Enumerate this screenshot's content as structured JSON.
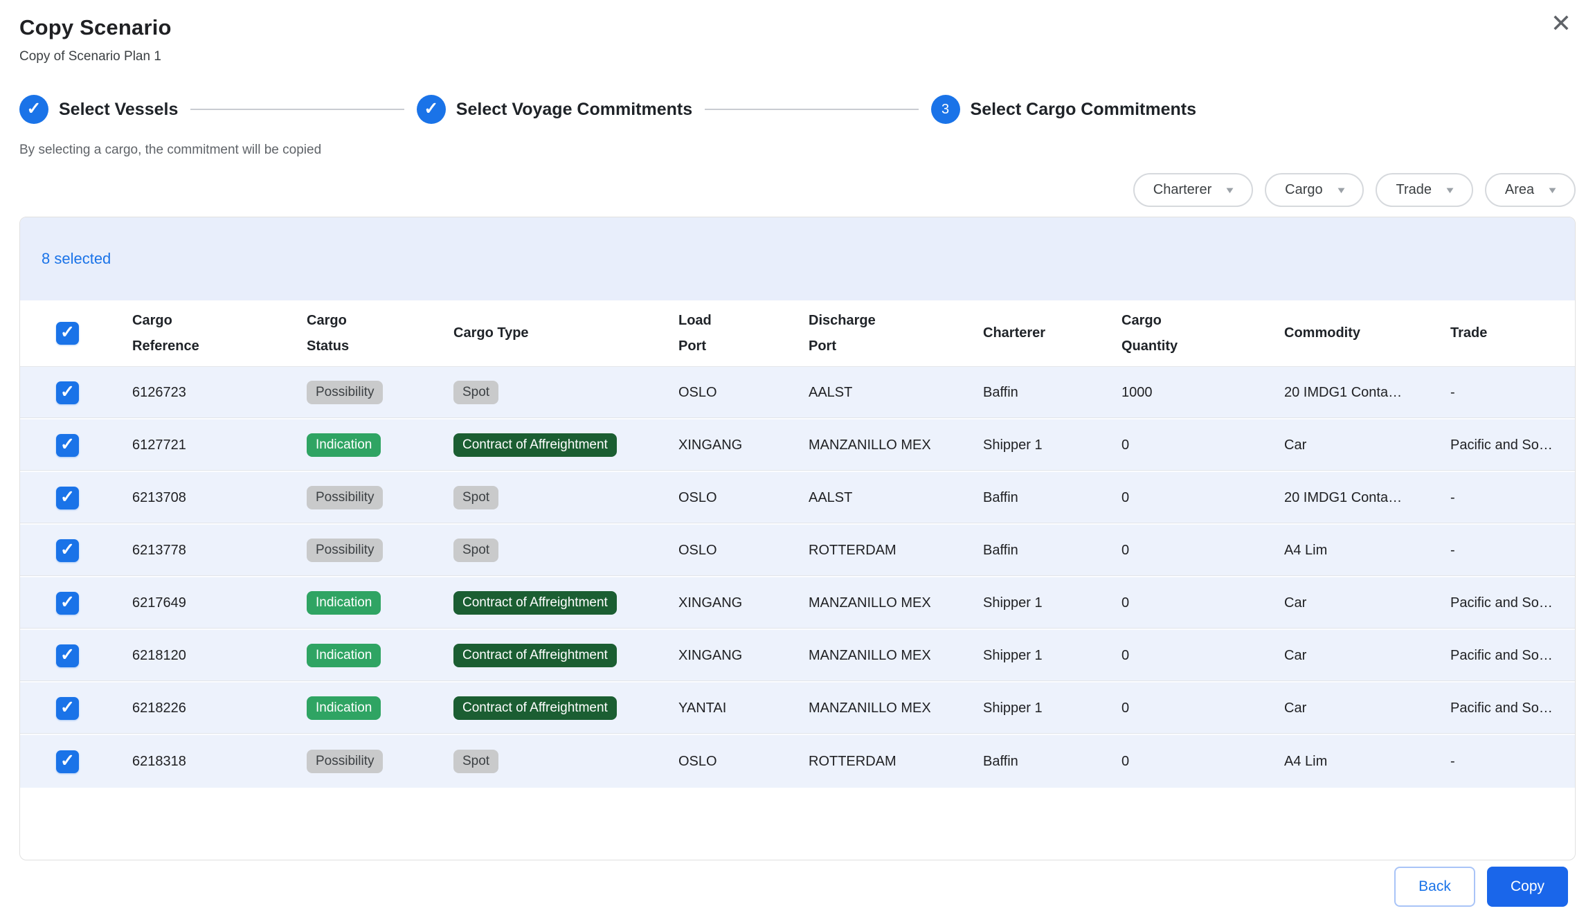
{
  "dialog": {
    "title": "Copy Scenario",
    "subtitle": "Copy of Scenario Plan 1",
    "close_icon": "✕"
  },
  "stepper": {
    "steps": [
      {
        "label": "Select Vessels",
        "state": "complete"
      },
      {
        "label": "Select Voyage Commitments",
        "state": "complete"
      },
      {
        "label": "Select Cargo Commitments",
        "state": "active",
        "number": "3"
      }
    ],
    "helper_text": "By selecting a cargo, the commitment will be copied"
  },
  "filters": [
    {
      "label": "Charterer"
    },
    {
      "label": "Cargo"
    },
    {
      "label": "Trade"
    },
    {
      "label": "Area"
    }
  ],
  "table": {
    "selected_text": "8 selected",
    "columns": [
      "Cargo\nReference",
      "Cargo\nStatus",
      "Cargo Type",
      "Load\nPort",
      "Discharge\nPort",
      "Charterer",
      "Cargo\nQuantity",
      "Commodity",
      "Trade"
    ],
    "rows": [
      {
        "selected": true,
        "reference": "6126723",
        "status": {
          "label": "Possibility",
          "variant": "gray"
        },
        "cargo_type": {
          "label": "Spot",
          "variant": "gray"
        },
        "load_port": "OSLO",
        "discharge_port": "AALST",
        "charterer": "Baffin",
        "cargo_quantity": "1000",
        "commodity": "20 IMDG1 Conta…",
        "trade": "-"
      },
      {
        "selected": true,
        "reference": "6127721",
        "status": {
          "label": "Indication",
          "variant": "green"
        },
        "cargo_type": {
          "label": "Contract of Affreightment",
          "variant": "darkgreen"
        },
        "load_port": "XINGANG",
        "discharge_port": "MANZANILLO MEX",
        "charterer": "Shipper 1",
        "cargo_quantity": "0",
        "commodity": "Car",
        "trade": "Pacific and So…"
      },
      {
        "selected": true,
        "reference": "6213708",
        "status": {
          "label": "Possibility",
          "variant": "gray"
        },
        "cargo_type": {
          "label": "Spot",
          "variant": "gray"
        },
        "load_port": "OSLO",
        "discharge_port": "AALST",
        "charterer": "Baffin",
        "cargo_quantity": "0",
        "commodity": "20 IMDG1 Conta…",
        "trade": "-"
      },
      {
        "selected": true,
        "reference": "6213778",
        "status": {
          "label": "Possibility",
          "variant": "gray"
        },
        "cargo_type": {
          "label": "Spot",
          "variant": "gray"
        },
        "load_port": "OSLO",
        "discharge_port": "ROTTERDAM",
        "charterer": "Baffin",
        "cargo_quantity": "0",
        "commodity": "A4 Lim",
        "trade": "-"
      },
      {
        "selected": true,
        "reference": "6217649",
        "status": {
          "label": "Indication",
          "variant": "green"
        },
        "cargo_type": {
          "label": "Contract of Affreightment",
          "variant": "darkgreen"
        },
        "load_port": "XINGANG",
        "discharge_port": "MANZANILLO MEX",
        "charterer": "Shipper 1",
        "cargo_quantity": "0",
        "commodity": "Car",
        "trade": "Pacific and So…"
      },
      {
        "selected": true,
        "reference": "6218120",
        "status": {
          "label": "Indication",
          "variant": "green"
        },
        "cargo_type": {
          "label": "Contract of Affreightment",
          "variant": "darkgreen"
        },
        "load_port": "XINGANG",
        "discharge_port": "MANZANILLO MEX",
        "charterer": "Shipper 1",
        "cargo_quantity": "0",
        "commodity": "Car",
        "trade": "Pacific and So…"
      },
      {
        "selected": true,
        "reference": "6218226",
        "status": {
          "label": "Indication",
          "variant": "green"
        },
        "cargo_type": {
          "label": "Contract of Affreightment",
          "variant": "darkgreen"
        },
        "load_port": "YANTAI",
        "discharge_port": "MANZANILLO MEX",
        "charterer": "Shipper 1",
        "cargo_quantity": "0",
        "commodity": "Car",
        "trade": "Pacific and So…"
      },
      {
        "selected": true,
        "reference": "6218318",
        "status": {
          "label": "Possibility",
          "variant": "gray"
        },
        "cargo_type": {
          "label": "Spot",
          "variant": "gray"
        },
        "load_port": "OSLO",
        "discharge_port": "ROTTERDAM",
        "charterer": "Baffin",
        "cargo_quantity": "0",
        "commodity": "A4 Lim",
        "trade": "-"
      }
    ],
    "header_checkbox_checked": true
  },
  "footer": {
    "back_label": "Back",
    "copy_label": "Copy"
  },
  "icons": {
    "check": "✓",
    "caret_down": "▼"
  },
  "colors": {
    "accent_blue": "#1A73E8",
    "primary_button_blue": "#1A66EA",
    "row_background": "#EDF2FC",
    "banner_background": "#E8EEFB",
    "badge_gray": "#C9CACB",
    "badge_green": "#2FA463",
    "badge_dark_green": "#1B5E32",
    "text_primary": "#202124",
    "text_secondary": "#5F6368"
  }
}
